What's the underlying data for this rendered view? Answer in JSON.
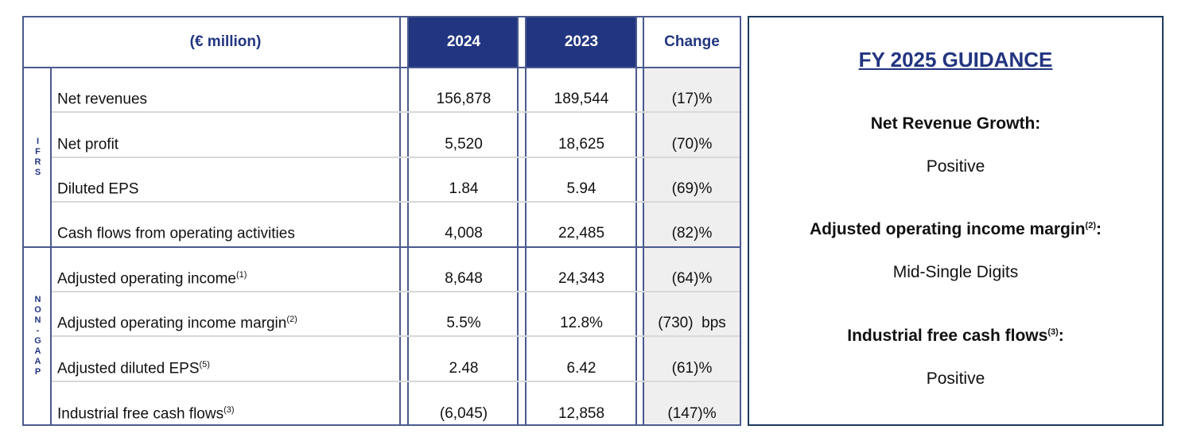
{
  "table": {
    "header": {
      "unit": "(€ million)",
      "col_2024": "2024",
      "col_2023": "2023",
      "col_change": "Change"
    },
    "sections": [
      {
        "label": [
          "I",
          "F",
          "R",
          "S"
        ]
      },
      {
        "label": [
          "N",
          "O",
          "N",
          "-",
          "G",
          "A",
          "A",
          "P"
        ]
      }
    ],
    "rows": [
      {
        "label": "Net revenues",
        "sup": "",
        "v2024": "156,878",
        "v2023": "189,544",
        "change": "(17)%"
      },
      {
        "label": "Net profit",
        "sup": "",
        "v2024": "5,520",
        "v2023": "18,625",
        "change": "(70)%"
      },
      {
        "label": "Diluted EPS",
        "sup": "",
        "v2024": "1.84",
        "v2023": "5.94",
        "change": "(69)%"
      },
      {
        "label": "Cash flows from operating activities",
        "sup": "",
        "v2024": "4,008",
        "v2023": "22,485",
        "change": "(82)%"
      },
      {
        "label": "Adjusted operating income",
        "sup": "(1)",
        "v2024": "8,648",
        "v2023": "24,343",
        "change": "(64)%"
      },
      {
        "label": "Adjusted operating income margin",
        "sup": "(2)",
        "v2024": "5.5%",
        "v2023": "12.8%",
        "change": "(730)  bps"
      },
      {
        "label": "Adjusted diluted EPS",
        "sup": "(5)",
        "v2024": "2.48",
        "v2023": "6.42",
        "change": "(61)%"
      },
      {
        "label": "Industrial free cash flows",
        "sup": "(3)",
        "v2024": "(6,045)",
        "v2023": "12,858",
        "change": "(147)%"
      }
    ]
  },
  "guidance": {
    "title": "FY 2025 GUIDANCE",
    "items": [
      {
        "heading": "Net Revenue Growth:",
        "sup": "",
        "value": "Positive"
      },
      {
        "heading": "Adjusted operating income margin",
        "sup": "(2)",
        "value": "Mid-Single Digits"
      },
      {
        "heading": "Industrial free cash flows",
        "sup": "(3)",
        "value": "Positive"
      }
    ]
  },
  "colors": {
    "header_bg": "#223580",
    "border": "#4a5a8e",
    "change_bg": "#efefef"
  }
}
